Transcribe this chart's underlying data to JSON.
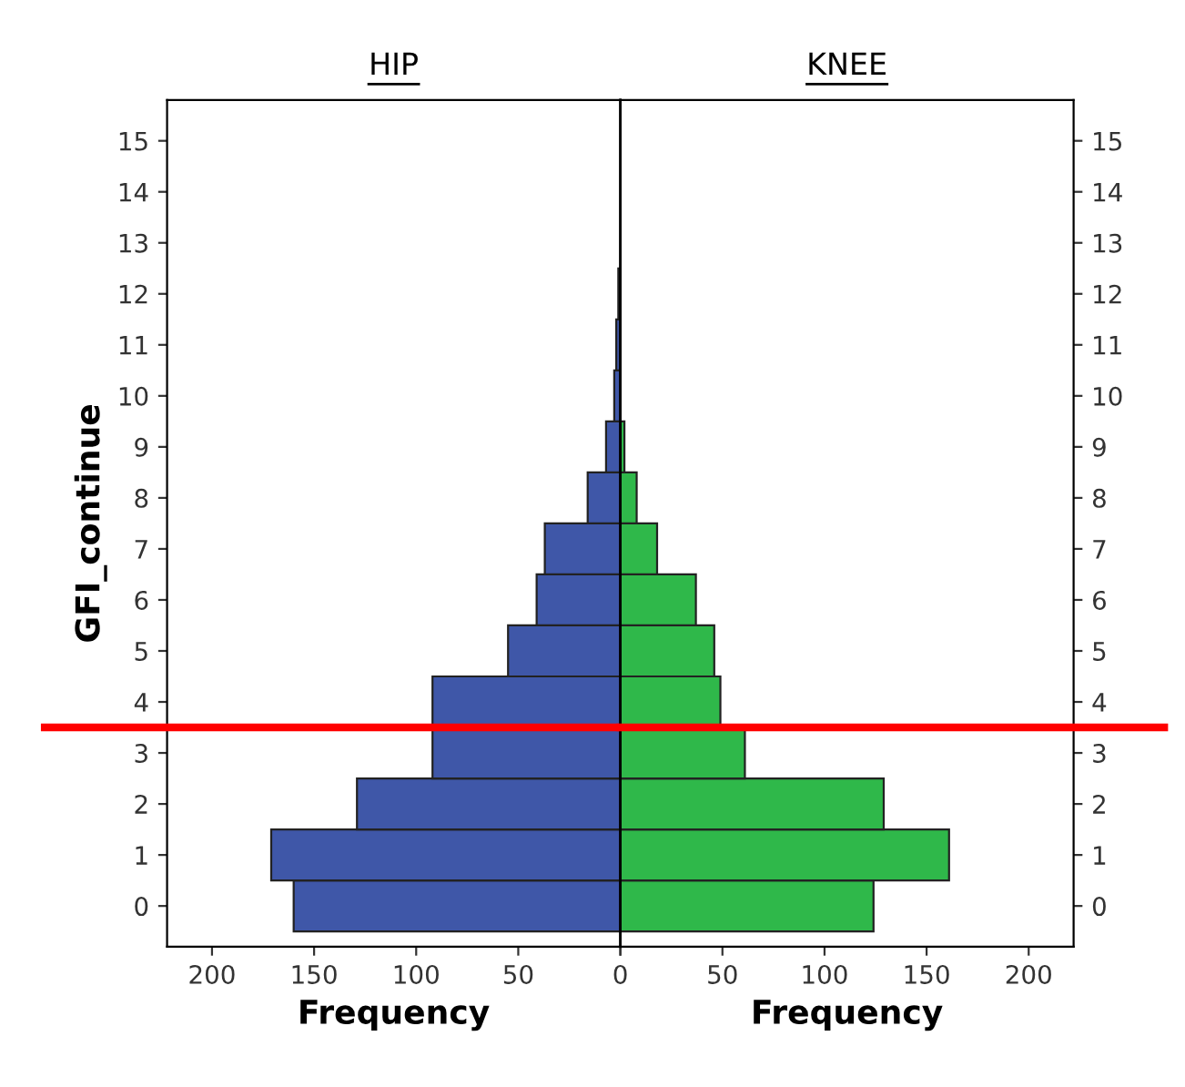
{
  "chart_data": [
    {
      "type": "histogram",
      "orientation": "horizontal",
      "title": "HIP",
      "xlabel": "Frequency",
      "ylabel": "GFI_continue",
      "bins": [
        -0.5,
        0.5,
        1.5,
        2.5,
        3.5,
        4.5,
        5.5,
        6.5,
        7.5,
        8.5,
        9.5,
        10.5,
        11.5,
        12.5,
        13.5,
        14.5,
        15.5
      ],
      "values": [
        160,
        171,
        129,
        92,
        92,
        55,
        41,
        37,
        16,
        7,
        3,
        2,
        1,
        0,
        0,
        0
      ],
      "color": "#3f57a8",
      "xlim": [
        222,
        0
      ],
      "xticks": [
        200,
        150,
        100,
        50,
        {
          "value": 0,
          "label": null
        }
      ],
      "ylim": [
        -0.8,
        15.8
      ],
      "yticks": [
        0,
        1,
        2,
        3,
        4,
        5,
        6,
        7,
        8,
        9,
        10,
        11,
        12,
        13,
        14,
        15
      ],
      "ref_lines": [
        {
          "axis": "y",
          "value": 3.5,
          "color": "#ff0000"
        }
      ],
      "grid": false
    },
    {
      "type": "histogram",
      "orientation": "horizontal",
      "title": "KNEE",
      "xlabel": "Frequency",
      "bins": [
        -0.5,
        0.5,
        1.5,
        2.5,
        3.5,
        4.5,
        5.5,
        6.5,
        7.5,
        8.5,
        9.5,
        10.5,
        11.5,
        12.5,
        13.5,
        14.5,
        15.5
      ],
      "values": [
        124,
        161,
        129,
        61,
        49,
        46,
        37,
        18,
        8,
        2,
        0,
        0,
        0,
        0,
        0,
        0
      ],
      "color": "#2fb84a",
      "xlim": [
        0,
        222
      ],
      "xticks": [
        0,
        50,
        100,
        150,
        200
      ],
      "ylim": [
        -0.8,
        15.8
      ],
      "yticks": [
        0,
        1,
        2,
        3,
        4,
        5,
        6,
        7,
        8,
        9,
        10,
        11,
        12,
        13,
        14,
        15
      ],
      "ref_lines": [
        {
          "axis": "y",
          "value": 3.5,
          "color": "#ff0000"
        }
      ],
      "grid": false
    }
  ]
}
